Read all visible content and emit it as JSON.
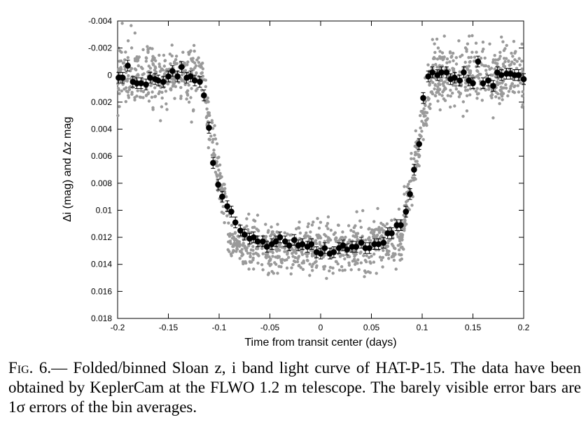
{
  "chart_data": {
    "type": "scatter",
    "title": "",
    "xlabel": "Time from transit center (days)",
    "ylabel": "Δi (mag) and Δz mag",
    "xlim": [
      -0.2,
      0.2
    ],
    "ylim": [
      -0.004,
      0.018
    ],
    "y_inverted": true,
    "grid": false,
    "xticks": [
      "-0.2",
      "-0.15",
      "-0.1",
      "-0.05",
      "0",
      "0.05",
      "0.1",
      "0.15",
      "0.2"
    ],
    "xtick_values": [
      -0.2,
      -0.15,
      -0.1,
      -0.05,
      0,
      0.05,
      0.1,
      0.15,
      0.2
    ],
    "yticks": [
      "-0.004",
      "-0.002",
      "0",
      "0.002",
      "0.004",
      "0.006",
      "0.008",
      "0.01",
      "0.012",
      "0.014",
      "0.016",
      "0.018"
    ],
    "ytick_values": [
      -0.004,
      -0.002,
      0,
      0.002,
      0.004,
      0.006,
      0.008,
      0.01,
      0.012,
      0.014,
      0.016,
      0.018
    ],
    "colors": {
      "raw": "#9a9a9a",
      "binned": "#000000"
    },
    "binned": {
      "x": [
        -0.199,
        -0.195,
        -0.19,
        -0.185,
        -0.181,
        -0.177,
        -0.172,
        -0.168,
        -0.163,
        -0.16,
        -0.155,
        -0.15,
        -0.146,
        -0.141,
        -0.137,
        -0.132,
        -0.128,
        -0.124,
        -0.119,
        -0.115,
        -0.11,
        -0.106,
        -0.101,
        -0.097,
        -0.092,
        -0.088,
        -0.084,
        -0.079,
        -0.075,
        -0.07,
        -0.066,
        -0.062,
        -0.057,
        -0.053,
        -0.048,
        -0.044,
        -0.04,
        -0.035,
        -0.031,
        -0.026,
        -0.022,
        -0.018,
        -0.013,
        -0.009,
        -0.004,
        0,
        0.004,
        0.009,
        0.013,
        0.018,
        0.022,
        0.026,
        0.031,
        0.035,
        0.04,
        0.044,
        0.048,
        0.053,
        0.057,
        0.062,
        0.066,
        0.07,
        0.075,
        0.079,
        0.084,
        0.088,
        0.092,
        0.097,
        0.101,
        0.106,
        0.11,
        0.115,
        0.119,
        0.124,
        0.128,
        0.132,
        0.137,
        0.141,
        0.146,
        0.15,
        0.155,
        0.16,
        0.165,
        0.17,
        0.174,
        0.178,
        0.183,
        0.187,
        0.191,
        0.195,
        0.2
      ],
      "y": [
        0.0002,
        0.0002,
        -0.0007,
        0.0005,
        0.0006,
        0.0006,
        0.0007,
        0.0002,
        0.0003,
        0.0004,
        0.0005,
        0.0001,
        -0.0003,
        0.0001,
        -0.0006,
        0.0002,
        0.0001,
        0.0004,
        0.0005,
        0.0015,
        0.0039,
        0.0065,
        0.0081,
        0.009,
        0.0097,
        0.0101,
        0.0109,
        0.0115,
        0.0118,
        0.0121,
        0.012,
        0.0123,
        0.0123,
        0.0127,
        0.0125,
        0.0123,
        0.012,
        0.0123,
        0.0126,
        0.0122,
        0.0126,
        0.0125,
        0.0127,
        0.0125,
        0.0131,
        0.0132,
        0.0128,
        0.0132,
        0.0131,
        0.0128,
        0.0126,
        0.0129,
        0.0127,
        0.0127,
        0.0124,
        0.0128,
        0.0128,
        0.0125,
        0.0125,
        0.0124,
        0.0117,
        0.0117,
        0.0111,
        0.0111,
        0.0101,
        0.0088,
        0.007,
        0.0051,
        0.0017,
        0.0001,
        -0.0002,
        0.0,
        -0.0002,
        -0.0002,
        0.0003,
        0.0002,
        0.0004,
        -0.0002,
        0.0004,
        0.0006,
        -0.001,
        0.0006,
        0.0004,
        0.0008,
        -0.0002,
        0.0,
        -0.0001,
        -0.0001,
        0.0,
        0.0,
        0.0003
      ],
      "errorbar_halfwidth": 0.0004
    },
    "raw_points": {
      "count": 1600,
      "out_of_transit_level": 0.0,
      "transit_depth": 0.0128,
      "ingress_egress": [
        -0.118,
        0.109
      ],
      "scatter_sigma": {
        "out_of_transit": 0.0011,
        "in_transit": 0.0009
      }
    }
  },
  "caption": {
    "prefix": "Fig. 6.—",
    "text": " Folded/binned Sloan z, i band light curve of HAT-P-15. The data have been obtained by KeplerCam at the FLWO 1.2 m telescope. The barely visible error bars are 1σ errors of the bin averages."
  }
}
